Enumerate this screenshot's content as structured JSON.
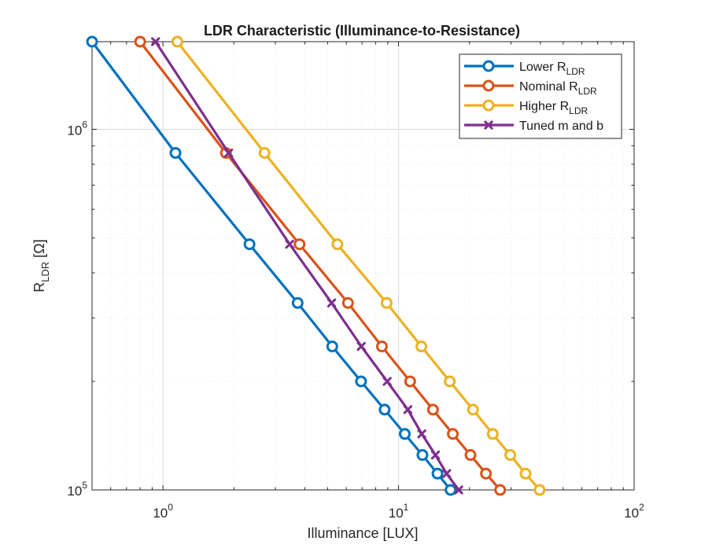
{
  "chart_data": {
    "type": "line",
    "title": "LDR Characteristic (Illuminance-to-Resistance)",
    "xlabel": "Illuminance [LUX]",
    "ylabel": {
      "main": "R",
      "sub": "LDR",
      "unit": " [Ω]"
    },
    "xscale": "log",
    "yscale": "log",
    "xlim": [
      0.5,
      100
    ],
    "ylim": [
      100000,
      1750000
    ],
    "grid": true,
    "minor_grid": true,
    "legend_position": "top-right",
    "xticks": [
      {
        "value": 1,
        "base": "10",
        "exp": "0"
      },
      {
        "value": 10,
        "base": "10",
        "exp": "1"
      },
      {
        "value": 100,
        "base": "10",
        "exp": "2"
      }
    ],
    "yticks": [
      {
        "value": 100000,
        "base": "10",
        "exp": "5"
      },
      {
        "value": 1000000,
        "base": "10",
        "exp": "6"
      }
    ],
    "series": [
      {
        "name": "Lower R",
        "name_sub": "LDR",
        "color": "#0072BD",
        "marker": "circle",
        "x": [
          0.5,
          1.13,
          2.33,
          3.73,
          5.23,
          6.93,
          8.73,
          10.63,
          12.63,
          14.63,
          16.63
        ],
        "y": [
          1750000,
          860000,
          480000,
          330000,
          250000,
          200000,
          167000,
          143000,
          125000,
          111000,
          100000
        ]
      },
      {
        "name": "Nominal R",
        "name_sub": "LDR",
        "color": "#D95319",
        "marker": "circle",
        "x": [
          0.8,
          1.85,
          3.8,
          6.1,
          8.5,
          11.2,
          14.0,
          17.0,
          20.2,
          23.5,
          27.0
        ],
        "y": [
          1750000,
          860000,
          480000,
          330000,
          250000,
          200000,
          167000,
          143000,
          125000,
          111000,
          100000
        ]
      },
      {
        "name": "Higher R",
        "name_sub": "LDR",
        "color": "#EDB120",
        "marker": "circle",
        "x": [
          1.15,
          2.7,
          5.5,
          8.9,
          12.5,
          16.5,
          20.7,
          25.1,
          29.8,
          34.6,
          39.7
        ],
        "y": [
          1750000,
          860000,
          480000,
          330000,
          250000,
          200000,
          167000,
          143000,
          125000,
          111000,
          100000
        ]
      },
      {
        "name": "Tuned m and b",
        "name_sub": "",
        "color": "#7E2F8E",
        "marker": "x",
        "x": [
          0.93,
          1.9,
          3.45,
          5.2,
          6.95,
          8.95,
          10.95,
          12.55,
          14.35,
          16.0,
          18.0
        ],
        "y": [
          1750000,
          860000,
          480000,
          330000,
          250000,
          200000,
          167000,
          143000,
          125000,
          111000,
          100000
        ]
      }
    ]
  }
}
